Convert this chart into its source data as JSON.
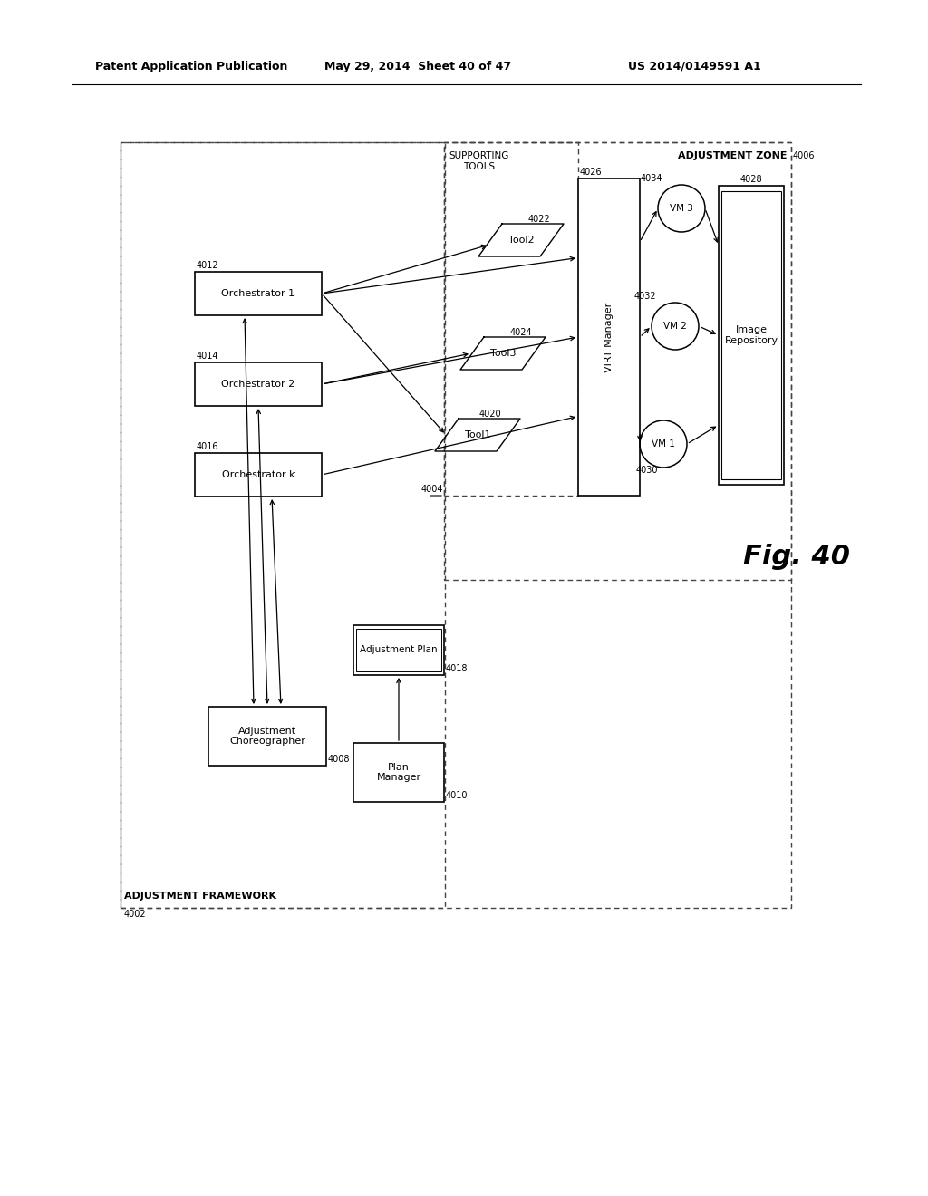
{
  "header_left": "Patent Application Publication",
  "header_mid": "May 29, 2014  Sheet 40 of 47",
  "header_right": "US 2014/0149591 A1",
  "fig_label": "Fig. 40",
  "bg_color": "#ffffff"
}
